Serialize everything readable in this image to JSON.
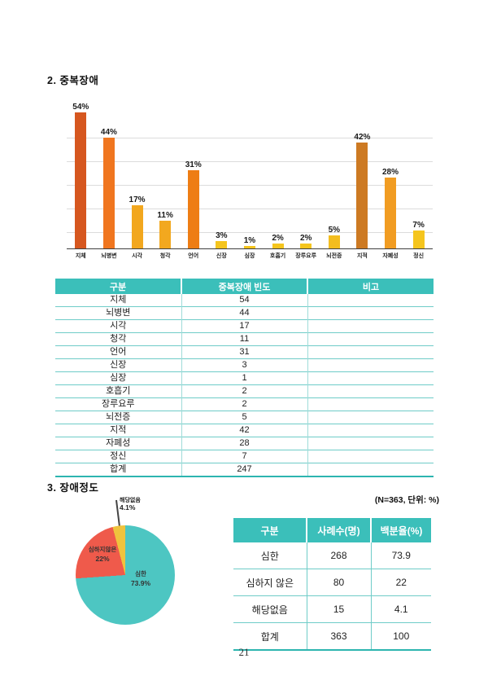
{
  "page_number": "21",
  "section2": {
    "heading": "2. 중복장애",
    "table": {
      "headers": [
        "구분",
        "중복장애 빈도",
        "비고"
      ],
      "rows": [
        [
          "지체",
          "54",
          ""
        ],
        [
          "뇌병변",
          "44",
          ""
        ],
        [
          "시각",
          "17",
          ""
        ],
        [
          "청각",
          "11",
          ""
        ],
        [
          "언어",
          "31",
          ""
        ],
        [
          "신장",
          "3",
          ""
        ],
        [
          "심장",
          "1",
          ""
        ],
        [
          "호흡기",
          "2",
          ""
        ],
        [
          "장루요루",
          "2",
          ""
        ],
        [
          "뇌전증",
          "5",
          ""
        ],
        [
          "지적",
          "42",
          ""
        ],
        [
          "자폐성",
          "28",
          ""
        ],
        [
          "정신",
          "7",
          ""
        ],
        [
          "합계",
          "247",
          ""
        ]
      ]
    }
  },
  "section3": {
    "heading": "3. 장애정도",
    "note": "(N=363, 단위: %)",
    "table": {
      "headers": [
        "구분",
        "사례수(명)",
        "백분율(%)"
      ],
      "rows": [
        [
          "심한",
          "268",
          "73.9"
        ],
        [
          "심하지 않은",
          "80",
          "22"
        ],
        [
          "해당없음",
          "15",
          "4.1"
        ],
        [
          "합계",
          "363",
          "100"
        ]
      ]
    }
  },
  "colors": {
    "table_header_bg": "#3bbfba",
    "table_border": "#6fccc8",
    "table_border_thick": "#2db5b0",
    "axis": "#3f3f3f",
    "gridline": "#dcdcdc"
  },
  "chart_data": [
    {
      "type": "bar",
      "title": "",
      "xlabel": "",
      "ylabel": "",
      "unit": "%",
      "ylim": [
        0,
        58
      ],
      "grid": true,
      "categories": [
        "지체",
        "뇌병변",
        "시각",
        "청각",
        "언어",
        "신장",
        "심장",
        "호흡기",
        "장루요루",
        "뇌전증",
        "지적",
        "자폐성",
        "정신"
      ],
      "values": [
        54,
        44,
        17,
        11,
        31,
        3,
        1,
        2,
        2,
        5,
        42,
        28,
        7
      ],
      "value_labels": [
        "54%",
        "44%",
        "17%",
        "11%",
        "31%",
        "3%",
        "1%",
        "2%",
        "2%",
        "5%",
        "42%",
        "28%",
        "7%"
      ],
      "bar_colors": [
        "#d6571f",
        "#f0761f",
        "#f2a71e",
        "#f2a81f",
        "#ee7d14",
        "#f5c51d",
        "#f5c51d",
        "#f5c51d",
        "#f5c51d",
        "#f3bd1e",
        "#cd7a23",
        "#f19c22",
        "#f5c51d"
      ]
    },
    {
      "type": "pie",
      "labels": [
        "심한",
        "심하지않은",
        "해당없음"
      ],
      "values": [
        73.9,
        22,
        4.1
      ],
      "value_labels": [
        "73.9%",
        "22%",
        "4.1%"
      ],
      "colors": [
        "#4dc6c2",
        "#ef5a4b",
        "#efc33d"
      ],
      "start_angle_deg": 0,
      "direction": "clockwise",
      "legend_position": "labels-on-slices"
    }
  ]
}
